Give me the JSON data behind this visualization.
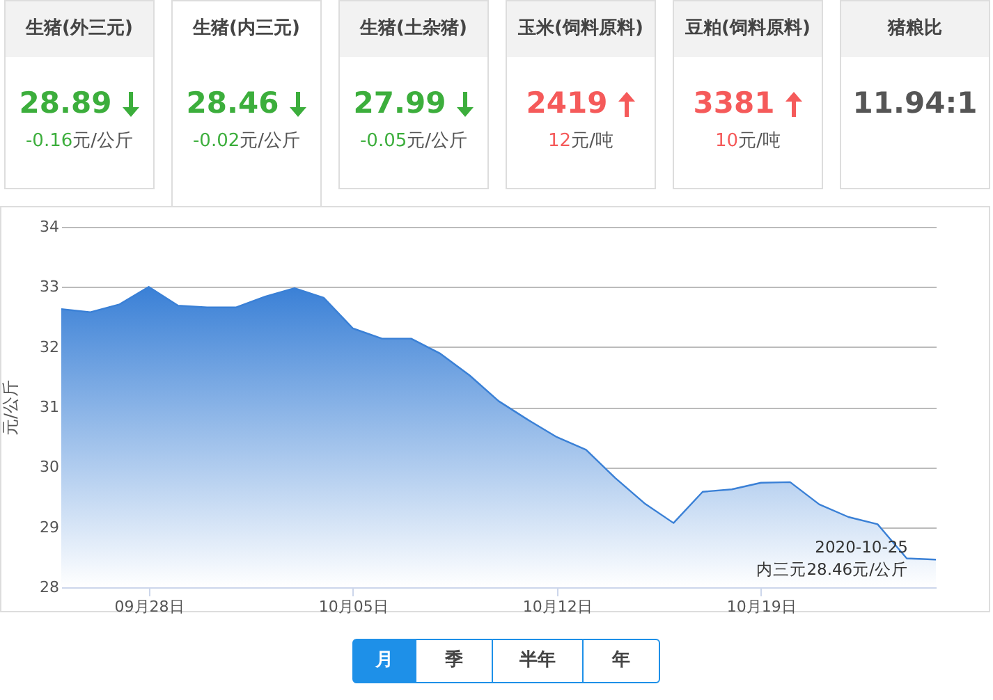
{
  "chart_data": [
    {
      "type": "other",
      "categories": [
        "生猪(外三元)",
        "生猪(内三元)",
        "生猪(土杂猪)",
        "玉米(饲料原料)",
        "豆粕(饲料原料)",
        "猪粮比"
      ],
      "value_labels": [
        "28.89",
        "28.46",
        "27.99",
        "2419",
        "3381",
        "11.94:1"
      ],
      "annotations": [
        "-0.16元/公斤",
        "-0.02元/公斤",
        "-0.05元/公斤",
        "12元/吨",
        "10元/吨"
      ]
    },
    {
      "type": "area",
      "ylabel": "元/公斤",
      "x": [
        "2020-09-25",
        "2020-09-26",
        "2020-09-27",
        "2020-09-28",
        "2020-09-29",
        "2020-09-30",
        "2020-10-01",
        "2020-10-02",
        "2020-10-03",
        "2020-10-04",
        "2020-10-05",
        "2020-10-06",
        "2020-10-07",
        "2020-10-08",
        "2020-10-09",
        "2020-10-10",
        "2020-10-11",
        "2020-10-12",
        "2020-10-13",
        "2020-10-14",
        "2020-10-15",
        "2020-10-16",
        "2020-10-17",
        "2020-10-18",
        "2020-10-19",
        "2020-10-20",
        "2020-10-21",
        "2020-10-22",
        "2020-10-23",
        "2020-10-24",
        "2020-10-25"
      ],
      "series": [
        {
          "color": "#3a80d6",
          "values": [
            32.63,
            32.58,
            32.71,
            33.0,
            32.69,
            32.66,
            32.66,
            32.84,
            32.98,
            32.82,
            32.31,
            32.14,
            32.14,
            31.89,
            31.53,
            31.1,
            30.79,
            30.5,
            30.29,
            29.82,
            29.4,
            29.07,
            29.59,
            29.63,
            29.74,
            29.75,
            29.38,
            29.17,
            29.05,
            28.48,
            28.46
          ]
        }
      ],
      "xlim": [
        "2020-09-25",
        "2020-10-25"
      ],
      "xticks": [
        {
          "value": "2020-09-28",
          "label": "09月28日"
        },
        {
          "value": "2020-10-05",
          "label": "10月05日"
        },
        {
          "value": "2020-10-12",
          "label": "10月12日"
        },
        {
          "value": "2020-10-19",
          "label": "10月19日"
        }
      ],
      "ylim": [
        28,
        34
      ],
      "yticks": [
        28,
        29,
        30,
        31,
        32,
        33,
        34
      ],
      "grid": "y",
      "marker": "none",
      "annotations": [
        {
          "text": "2020-10-25\n内三元28.46元/公斤",
          "x": "2020-10-25",
          "y": 28.46
        }
      ]
    },
    {
      "type": "other",
      "categories": [
        "月",
        "季",
        "半年",
        "年"
      ]
    }
  ]
}
